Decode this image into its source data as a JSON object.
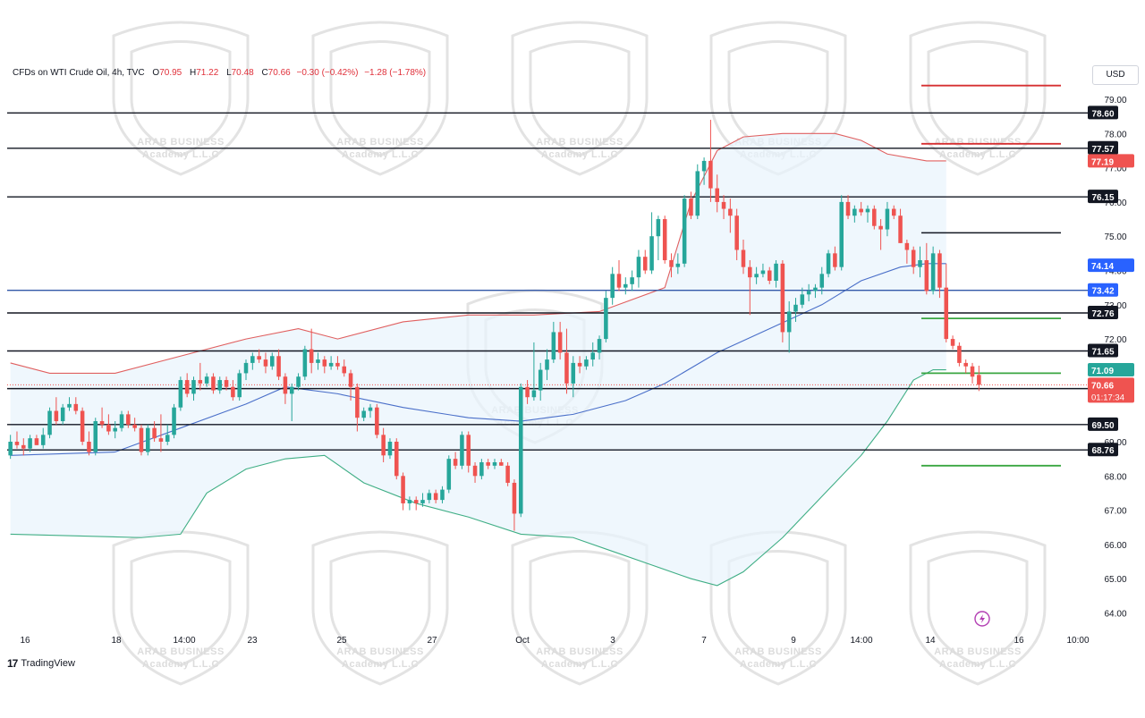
{
  "header": {
    "symbol": "CFDs on WTI Crude Oil, 4h, TVC",
    "open_label": "O",
    "open": "70.95",
    "high_label": "H",
    "high": "71.22",
    "low_label": "L",
    "low": "70.48",
    "close_label": "C",
    "close": "70.66",
    "change": "−0.30 (−0.42%)",
    "extra_change": "−1.28 (−1.78%)"
  },
  "currency_button": "USD",
  "footer": {
    "brand": "TradingView",
    "brand_mark": "17"
  },
  "watermark": {
    "line1": "ARAB BUSINESS",
    "line2": "Academy L.L.C"
  },
  "colors": {
    "up": "#26a69a",
    "down": "#ef5350",
    "upper_band": "#e06060",
    "lower_band": "#3fae85",
    "basis": "#4a6fc9",
    "band_fill": "#e8f3fc",
    "level_black": "#131722",
    "level_blue": "#3358a8",
    "level_red": "#d63032",
    "level_green": "#3aa641"
  },
  "chart_data": {
    "type": "candlestick",
    "title": "CFDs on WTI Crude Oil, 4h, TVC",
    "y_axis": {
      "ticks": [
        "79.00",
        "78.00",
        "77.00",
        "76.00",
        "75.00",
        "74.00",
        "73.00",
        "72.00",
        "69.00",
        "68.00",
        "67.00",
        "66.00",
        "65.00",
        "64.00"
      ],
      "ylim": [
        63.5,
        80.2
      ],
      "side": "right"
    },
    "x_axis": {
      "ticks": [
        "16",
        "18",
        "14:00",
        "23",
        "25",
        "27",
        "Oct",
        "3",
        "7",
        "9",
        "14:00",
        "14",
        "16",
        "10:00"
      ]
    },
    "candles_ohlc": [
      [
        68.6,
        69.2,
        68.5,
        69.0
      ],
      [
        69.0,
        69.3,
        68.8,
        68.9
      ],
      [
        68.9,
        69.1,
        68.6,
        68.8
      ],
      [
        68.8,
        69.2,
        68.7,
        69.1
      ],
      [
        69.1,
        69.2,
        68.9,
        68.9
      ],
      [
        68.9,
        69.4,
        68.8,
        69.2
      ],
      [
        69.2,
        70.0,
        69.1,
        69.9
      ],
      [
        69.9,
        70.3,
        69.5,
        69.6
      ],
      [
        69.6,
        70.1,
        69.5,
        70.0
      ],
      [
        70.0,
        70.3,
        69.9,
        70.1
      ],
      [
        70.1,
        70.3,
        69.8,
        69.9
      ],
      [
        69.9,
        70.0,
        68.9,
        69.0
      ],
      [
        69.0,
        69.3,
        68.6,
        68.7
      ],
      [
        68.7,
        69.7,
        68.6,
        69.6
      ],
      [
        69.6,
        70.0,
        69.4,
        69.5
      ],
      [
        69.5,
        69.8,
        69.2,
        69.3
      ],
      [
        69.3,
        69.6,
        69.1,
        69.4
      ],
      [
        69.4,
        69.9,
        69.3,
        69.8
      ],
      [
        69.8,
        69.9,
        69.4,
        69.5
      ],
      [
        69.5,
        69.7,
        69.3,
        69.4
      ],
      [
        69.4,
        69.5,
        68.6,
        68.7
      ],
      [
        68.7,
        69.5,
        68.6,
        69.4
      ],
      [
        69.4,
        69.6,
        69.0,
        69.1
      ],
      [
        69.1,
        69.8,
        68.7,
        69.0
      ],
      [
        69.0,
        69.5,
        68.9,
        69.2
      ],
      [
        69.2,
        70.1,
        69.1,
        70.0
      ],
      [
        70.0,
        70.9,
        69.9,
        70.8
      ],
      [
        70.8,
        71.0,
        70.3,
        70.4
      ],
      [
        70.4,
        70.9,
        70.2,
        70.8
      ],
      [
        70.8,
        71.3,
        70.5,
        70.7
      ],
      [
        70.7,
        71.0,
        70.6,
        70.9
      ],
      [
        70.9,
        71.0,
        70.4,
        70.5
      ],
      [
        70.5,
        70.9,
        70.4,
        70.8
      ],
      [
        70.8,
        70.9,
        70.5,
        70.6
      ],
      [
        70.6,
        70.8,
        70.2,
        70.3
      ],
      [
        70.3,
        71.1,
        70.2,
        71.0
      ],
      [
        71.0,
        71.4,
        70.8,
        71.3
      ],
      [
        71.3,
        71.6,
        71.1,
        71.5
      ],
      [
        71.5,
        71.7,
        71.3,
        71.4
      ],
      [
        71.4,
        71.6,
        71.0,
        71.2
      ],
      [
        71.2,
        71.6,
        71.1,
        71.5
      ],
      [
        71.5,
        71.7,
        70.8,
        70.9
      ],
      [
        70.9,
        71.0,
        70.1,
        70.4
      ],
      [
        70.4,
        70.7,
        69.6,
        70.6
      ],
      [
        70.6,
        71.0,
        70.5,
        70.9
      ],
      [
        70.9,
        71.8,
        70.8,
        71.7
      ],
      [
        71.7,
        72.3,
        71.0,
        71.3
      ],
      [
        71.3,
        71.6,
        71.1,
        71.4
      ],
      [
        71.4,
        71.5,
        71.0,
        71.2
      ],
      [
        71.2,
        71.5,
        71.1,
        71.3
      ],
      [
        71.3,
        71.5,
        71.1,
        71.2
      ],
      [
        71.2,
        71.4,
        70.9,
        71.0
      ],
      [
        71.0,
        71.1,
        70.2,
        70.6
      ],
      [
        70.6,
        70.7,
        69.3,
        69.7
      ],
      [
        69.7,
        70.0,
        69.6,
        69.9
      ],
      [
        69.9,
        70.1,
        69.7,
        70.0
      ],
      [
        70.0,
        70.1,
        69.1,
        69.2
      ],
      [
        69.2,
        69.4,
        68.4,
        68.6
      ],
      [
        68.6,
        69.1,
        68.5,
        69.0
      ],
      [
        69.0,
        69.1,
        67.9,
        68.0
      ],
      [
        68.0,
        68.1,
        67.0,
        67.2
      ],
      [
        67.2,
        67.4,
        67.0,
        67.3
      ],
      [
        67.3,
        67.4,
        67.0,
        67.2
      ],
      [
        67.2,
        67.5,
        67.1,
        67.3
      ],
      [
        67.3,
        67.6,
        67.2,
        67.5
      ],
      [
        67.5,
        67.6,
        67.2,
        67.3
      ],
      [
        67.3,
        67.7,
        67.2,
        67.6
      ],
      [
        67.6,
        68.6,
        67.5,
        68.5
      ],
      [
        68.5,
        68.7,
        68.2,
        68.3
      ],
      [
        68.3,
        69.3,
        68.2,
        69.2
      ],
      [
        69.2,
        69.3,
        68.1,
        68.3
      ],
      [
        68.3,
        68.4,
        67.8,
        68.0
      ],
      [
        68.0,
        68.5,
        67.9,
        68.4
      ],
      [
        68.4,
        68.5,
        68.2,
        68.3
      ],
      [
        68.3,
        68.5,
        68.2,
        68.4
      ],
      [
        68.4,
        68.5,
        68.3,
        68.3
      ],
      [
        68.3,
        68.4,
        67.7,
        67.8
      ],
      [
        67.8,
        67.9,
        66.4,
        66.9
      ],
      [
        66.9,
        70.7,
        66.8,
        70.6
      ],
      [
        70.6,
        70.8,
        70.1,
        70.3
      ],
      [
        70.3,
        71.9,
        70.2,
        70.5
      ],
      [
        70.5,
        71.3,
        70.2,
        71.1
      ],
      [
        71.1,
        71.7,
        70.8,
        71.4
      ],
      [
        71.4,
        72.5,
        71.3,
        72.2
      ],
      [
        72.2,
        72.5,
        71.4,
        71.6
      ],
      [
        71.6,
        72.3,
        70.4,
        70.7
      ],
      [
        70.7,
        71.5,
        70.3,
        71.3
      ],
      [
        71.3,
        71.5,
        71.0,
        71.2
      ],
      [
        71.2,
        71.5,
        71.1,
        71.4
      ],
      [
        71.4,
        71.9,
        71.2,
        71.6
      ],
      [
        71.6,
        72.1,
        71.4,
        72.0
      ],
      [
        72.0,
        73.4,
        71.9,
        73.2
      ],
      [
        73.2,
        74.1,
        73.0,
        73.9
      ],
      [
        73.9,
        74.3,
        73.4,
        73.5
      ],
      [
        73.5,
        73.8,
        73.3,
        73.6
      ],
      [
        73.6,
        74.0,
        73.4,
        73.8
      ],
      [
        73.8,
        74.6,
        73.5,
        74.4
      ],
      [
        74.4,
        74.6,
        73.9,
        74.0
      ],
      [
        74.0,
        75.7,
        73.9,
        75.0
      ],
      [
        75.0,
        75.6,
        74.3,
        75.5
      ],
      [
        75.5,
        75.6,
        74.2,
        74.3
      ],
      [
        74.3,
        74.5,
        73.8,
        74.1
      ],
      [
        74.1,
        74.5,
        73.9,
        74.2
      ],
      [
        74.2,
        76.2,
        74.1,
        76.1
      ],
      [
        76.1,
        76.3,
        75.5,
        75.6
      ],
      [
        75.6,
        77.1,
        75.5,
        76.9
      ],
      [
        76.9,
        77.3,
        76.5,
        77.2
      ],
      [
        77.2,
        78.4,
        76.0,
        76.4
      ],
      [
        76.4,
        76.8,
        75.7,
        76.0
      ],
      [
        76.0,
        76.2,
        75.5,
        75.8
      ],
      [
        75.8,
        76.1,
        75.1,
        75.6
      ],
      [
        75.6,
        75.8,
        74.3,
        74.6
      ],
      [
        74.6,
        74.9,
        73.9,
        74.1
      ],
      [
        74.1,
        74.3,
        72.7,
        73.8
      ],
      [
        73.8,
        74.1,
        73.6,
        73.9
      ],
      [
        73.9,
        74.2,
        73.8,
        74.0
      ],
      [
        74.0,
        74.1,
        73.6,
        73.7
      ],
      [
        73.7,
        74.3,
        73.5,
        74.2
      ],
      [
        74.2,
        74.3,
        71.9,
        72.2
      ],
      [
        72.2,
        73.1,
        71.6,
        72.8
      ],
      [
        72.8,
        73.2,
        72.5,
        73.0
      ],
      [
        73.0,
        73.5,
        72.9,
        73.3
      ],
      [
        73.3,
        73.6,
        73.1,
        73.4
      ],
      [
        73.4,
        73.6,
        73.2,
        73.5
      ],
      [
        73.5,
        74.1,
        73.3,
        73.9
      ],
      [
        73.9,
        74.6,
        73.8,
        74.5
      ],
      [
        74.5,
        74.7,
        74.0,
        74.1
      ],
      [
        74.1,
        76.2,
        74.0,
        76.0
      ],
      [
        76.0,
        76.2,
        75.5,
        75.6
      ],
      [
        75.6,
        75.9,
        75.4,
        75.8
      ],
      [
        75.8,
        76.0,
        75.6,
        75.7
      ],
      [
        75.7,
        75.9,
        75.4,
        75.8
      ],
      [
        75.8,
        75.9,
        75.2,
        75.3
      ],
      [
        75.3,
        75.5,
        74.6,
        75.2
      ],
      [
        75.2,
        76.0,
        75.0,
        75.8
      ],
      [
        75.8,
        75.9,
        75.5,
        75.6
      ],
      [
        75.6,
        75.8,
        74.8,
        74.8
      ],
      [
        74.8,
        74.9,
        74.2,
        74.6
      ],
      [
        74.6,
        74.7,
        73.9,
        74.1
      ],
      [
        74.1,
        74.7,
        73.8,
        74.3
      ],
      [
        74.3,
        74.8,
        73.3,
        73.4
      ],
      [
        73.4,
        74.7,
        73.3,
        74.5
      ],
      [
        74.5,
        74.6,
        73.2,
        73.5
      ],
      [
        73.5,
        74.2,
        71.9,
        72.0
      ],
      [
        72.0,
        72.1,
        71.7,
        71.8
      ],
      [
        71.8,
        71.9,
        71.2,
        71.3
      ],
      [
        71.3,
        71.4,
        71.0,
        71.2
      ],
      [
        71.2,
        71.3,
        70.7,
        70.9
      ],
      [
        70.95,
        71.22,
        70.48,
        70.66
      ]
    ],
    "bollinger": {
      "upper": [
        [
          0,
          71.3
        ],
        [
          6,
          71.0
        ],
        [
          16,
          71.0
        ],
        [
          26,
          71.5
        ],
        [
          36,
          72.0
        ],
        [
          44,
          72.3
        ],
        [
          50,
          72.0
        ],
        [
          60,
          72.5
        ],
        [
          70,
          72.7
        ],
        [
          80,
          72.7
        ],
        [
          90,
          72.8
        ],
        [
          100,
          73.5
        ],
        [
          104,
          76.0
        ],
        [
          108,
          77.5
        ],
        [
          112,
          77.9
        ],
        [
          118,
          78.0
        ],
        [
          126,
          78.0
        ],
        [
          130,
          77.8
        ],
        [
          134,
          77.4
        ],
        [
          140,
          77.2
        ],
        [
          143,
          77.2
        ]
      ],
      "basis": [
        [
          0,
          68.6
        ],
        [
          16,
          68.7
        ],
        [
          26,
          69.4
        ],
        [
          36,
          70.1
        ],
        [
          42,
          70.6
        ],
        [
          50,
          70.4
        ],
        [
          60,
          70.0
        ],
        [
          70,
          69.7
        ],
        [
          78,
          69.6
        ],
        [
          86,
          69.8
        ],
        [
          94,
          70.2
        ],
        [
          100,
          70.7
        ],
        [
          108,
          71.6
        ],
        [
          116,
          72.3
        ],
        [
          124,
          73.0
        ],
        [
          130,
          73.7
        ],
        [
          136,
          74.1
        ],
        [
          140,
          74.2
        ],
        [
          143,
          74.2
        ]
      ],
      "lower": [
        [
          0,
          66.3
        ],
        [
          20,
          66.2
        ],
        [
          26,
          66.3
        ],
        [
          30,
          67.5
        ],
        [
          36,
          68.2
        ],
        [
          42,
          68.5
        ],
        [
          48,
          68.6
        ],
        [
          54,
          67.8
        ],
        [
          62,
          67.2
        ],
        [
          70,
          66.8
        ],
        [
          78,
          66.3
        ],
        [
          86,
          66.2
        ],
        [
          92,
          65.8
        ],
        [
          98,
          65.4
        ],
        [
          104,
          65.0
        ],
        [
          108,
          64.8
        ],
        [
          112,
          65.2
        ],
        [
          118,
          66.2
        ],
        [
          124,
          67.4
        ],
        [
          130,
          68.6
        ],
        [
          134,
          69.6
        ],
        [
          138,
          70.8
        ],
        [
          141,
          71.1
        ],
        [
          143,
          71.1
        ]
      ]
    },
    "horizontal_levels": [
      {
        "value": 78.6,
        "label": "78.60",
        "color": "level_black",
        "span": "full"
      },
      {
        "value": 77.57,
        "label": "77.57",
        "color": "level_black",
        "span": "full"
      },
      {
        "value": 76.15,
        "label": "76.15",
        "color": "level_black",
        "span": "full"
      },
      {
        "value": 73.42,
        "label": "73.42",
        "color": "level_blue",
        "span": "full"
      },
      {
        "value": 72.76,
        "label": "72.76",
        "color": "level_black",
        "span": "full"
      },
      {
        "value": 71.65,
        "label": "71.65",
        "color": "level_black",
        "span": "full"
      },
      {
        "value": 70.55,
        "label": "70.55",
        "color": "level_black",
        "span": "full"
      },
      {
        "value": 69.5,
        "label": "69.50",
        "color": "level_black",
        "span": "full"
      },
      {
        "value": 68.76,
        "label": "68.76",
        "color": "level_black",
        "span": "full"
      },
      {
        "value": 79.4,
        "label": "",
        "color": "level_red",
        "span": "right"
      },
      {
        "value": 77.7,
        "label": "",
        "color": "level_red",
        "span": "right"
      },
      {
        "value": 75.1,
        "label": "",
        "color": "level_black",
        "span": "right"
      },
      {
        "value": 72.6,
        "label": "",
        "color": "level_green",
        "span": "right"
      },
      {
        "value": 71.0,
        "label": "",
        "color": "level_green",
        "span": "right"
      },
      {
        "value": 68.3,
        "label": "",
        "color": "level_green",
        "span": "right"
      }
    ],
    "price_tags": [
      {
        "value": 77.19,
        "label": "77.19",
        "bg": "#ef5350"
      },
      {
        "value": 74.14,
        "label": "74.14",
        "bg": "#2962ff"
      },
      {
        "value": 71.09,
        "label": "71.09",
        "bg": "#26a69a"
      },
      {
        "value": 70.66,
        "label": "70.66",
        "sub": "01:17:34",
        "bg": "#ef5350"
      }
    ],
    "grid": false,
    "legend": "top-left"
  }
}
